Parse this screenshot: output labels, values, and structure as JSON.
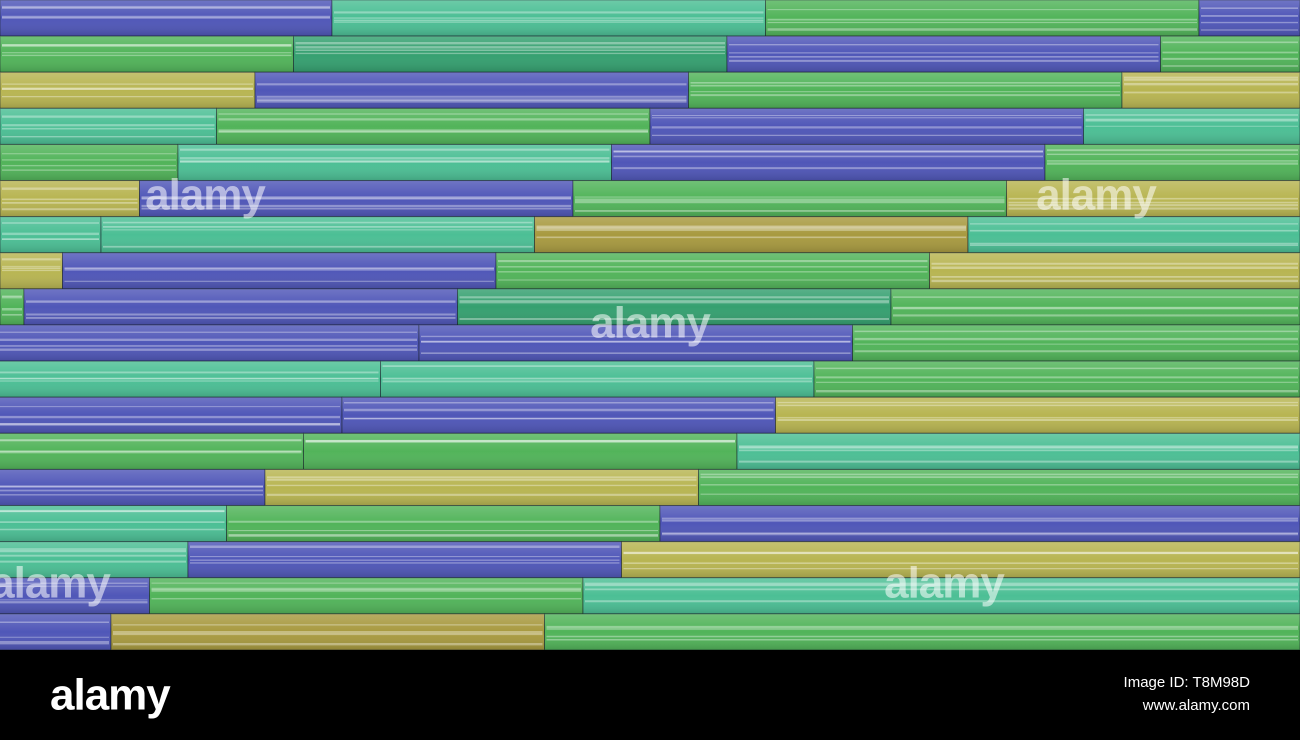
{
  "watermarks": [
    "alamy",
    "alamy",
    "alamy",
    "alamy",
    "alamy"
  ],
  "footer": {
    "logo": "alamy",
    "image_id": "Image ID: T8M98D",
    "url": "www.alamy.com"
  }
}
